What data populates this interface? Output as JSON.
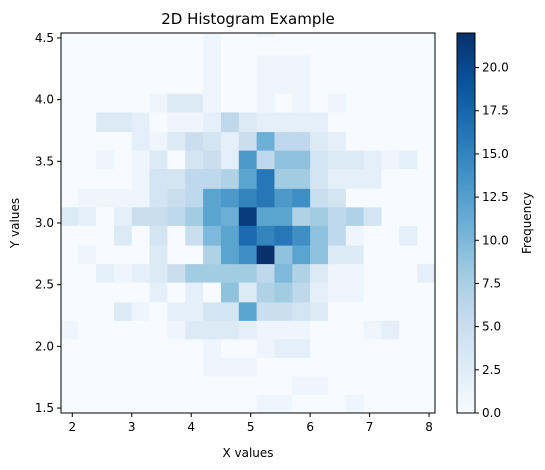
{
  "chart_data": {
    "type": "heatmap",
    "title": "2D Histogram Example",
    "xlabel": "X values",
    "ylabel": "Y values",
    "colorbar_label": "Frequency",
    "colormap": "Blues",
    "colorbar_range": [
      0,
      22
    ],
    "xlim": [
      1.81,
      8.1
    ],
    "ylim": [
      1.46,
      4.54
    ],
    "x_edges": [
      1.81,
      2.1,
      2.4,
      2.7,
      3.0,
      3.3,
      3.6,
      3.9,
      4.2,
      4.5,
      4.8,
      5.1,
      5.4,
      5.7,
      6.0,
      6.3,
      6.6,
      6.9,
      7.2,
      7.5,
      7.8,
      8.1
    ],
    "y_edges": [
      1.46,
      1.61,
      1.76,
      1.91,
      2.06,
      2.21,
      2.36,
      2.52,
      2.67,
      2.82,
      2.98,
      3.13,
      3.28,
      3.44,
      3.59,
      3.74,
      3.9,
      4.05,
      4.2,
      4.36,
      4.51,
      4.54
    ],
    "x_ticks": [
      2,
      3,
      4,
      5,
      6,
      7,
      8
    ],
    "y_ticks": [
      1.5,
      2.0,
      2.5,
      3.0,
      3.5,
      4.0,
      4.5
    ],
    "colorbar_ticks": [
      0.0,
      2.5,
      5.0,
      7.5,
      10.0,
      12.5,
      15.0,
      17.5,
      20.0
    ],
    "counts": [
      [
        0,
        0,
        0,
        0,
        0,
        0,
        0,
        0,
        0,
        0,
        0,
        1,
        1,
        0,
        0,
        0,
        1,
        0,
        0,
        0,
        0
      ],
      [
        0,
        0,
        0,
        0,
        0,
        0,
        0,
        0,
        0,
        0,
        0,
        0,
        0,
        1,
        1,
        0,
        0,
        0,
        0,
        0,
        0
      ],
      [
        0,
        0,
        0,
        0,
        0,
        0,
        0,
        0,
        1,
        1,
        1,
        0,
        0,
        0,
        0,
        0,
        0,
        0,
        0,
        0,
        0
      ],
      [
        0,
        0,
        0,
        0,
        0,
        0,
        0,
        0,
        1,
        0,
        0,
        1,
        2,
        2,
        0,
        0,
        0,
        0,
        0,
        0,
        0
      ],
      [
        1,
        0,
        0,
        0,
        0,
        0,
        1,
        3,
        3,
        3,
        2,
        1,
        1,
        1,
        0,
        0,
        0,
        1,
        2,
        0,
        0
      ],
      [
        0,
        0,
        0,
        3,
        1,
        0,
        2,
        2,
        4,
        4,
        12,
        5,
        5,
        4,
        3,
        0,
        0,
        0,
        0,
        0,
        0
      ],
      [
        0,
        0,
        0,
        0,
        0,
        2,
        0,
        2,
        0,
        9,
        3,
        7,
        8,
        6,
        2,
        1,
        1,
        0,
        0,
        0,
        0
      ],
      [
        0,
        0,
        2,
        1,
        2,
        3,
        5,
        8,
        8,
        8,
        8,
        6,
        10,
        7,
        3,
        1,
        1,
        0,
        0,
        0,
        2
      ],
      [
        0,
        1,
        0,
        0,
        0,
        3,
        0,
        0,
        7,
        12,
        14,
        22,
        9,
        12,
        9,
        3,
        3,
        0,
        0,
        0,
        0
      ],
      [
        0,
        0,
        0,
        3,
        0,
        4,
        0,
        5,
        10,
        12,
        17,
        15,
        16,
        14,
        9,
        6,
        1,
        0,
        0,
        2,
        0
      ],
      [
        3,
        2,
        0,
        2,
        5,
        5,
        6,
        8,
        12,
        11,
        21,
        12,
        12,
        7,
        8,
        6,
        7,
        4,
        0,
        0,
        0
      ],
      [
        0,
        1,
        1,
        1,
        1,
        4,
        5,
        6,
        12,
        13,
        15,
        16,
        13,
        14,
        5,
        4,
        0,
        0,
        0,
        0,
        0
      ],
      [
        0,
        0,
        0,
        0,
        1,
        4,
        4,
        6,
        6,
        7,
        12,
        16,
        8,
        8,
        4,
        2,
        2,
        2,
        0,
        0,
        0
      ],
      [
        0,
        0,
        1,
        0,
        1,
        3,
        0,
        4,
        5,
        2,
        13,
        6,
        9,
        9,
        4,
        3,
        3,
        2,
        1,
        2,
        0
      ],
      [
        0,
        0,
        0,
        0,
        2,
        1,
        3,
        5,
        4,
        2,
        5,
        11,
        6,
        6,
        3,
        2,
        0,
        0,
        0,
        0,
        0
      ],
      [
        0,
        0,
        3,
        3,
        2,
        0,
        1,
        1,
        2,
        6,
        3,
        2,
        2,
        2,
        2,
        0,
        0,
        0,
        0,
        0,
        0
      ],
      [
        0,
        0,
        0,
        0,
        0,
        1,
        3,
        3,
        1,
        0,
        0,
        1,
        0,
        1,
        0,
        1,
        0,
        0,
        0,
        0,
        0
      ],
      [
        0,
        0,
        0,
        0,
        0,
        0,
        0,
        0,
        1,
        0,
        0,
        1,
        1,
        1,
        0,
        0,
        0,
        0,
        0,
        0,
        0
      ],
      [
        0,
        0,
        0,
        0,
        0,
        0,
        0,
        0,
        1,
        0,
        0,
        1,
        1,
        1,
        0,
        0,
        0,
        0,
        0,
        0,
        0
      ],
      [
        0,
        0,
        0,
        0,
        0,
        0,
        0,
        0,
        1,
        0,
        0,
        0,
        0,
        0,
        0,
        0,
        0,
        0,
        0,
        0,
        0
      ],
      [
        0,
        0,
        0,
        0,
        0,
        0,
        0,
        0,
        1,
        0,
        0,
        1,
        0,
        0,
        0,
        0,
        0,
        0,
        0,
        0,
        0
      ]
    ]
  }
}
